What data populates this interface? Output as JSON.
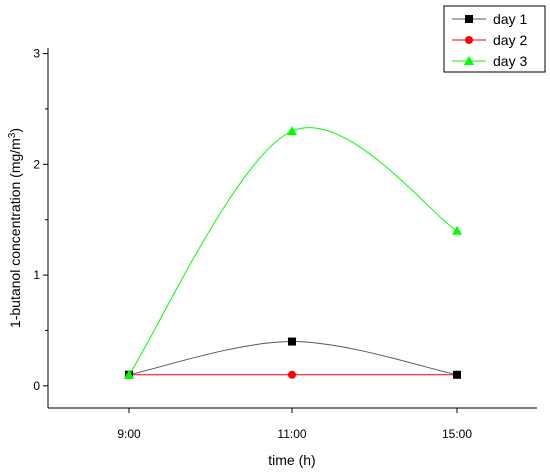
{
  "chart_data": {
    "type": "line",
    "categories": [
      "9:00",
      "11:00",
      "15:00"
    ],
    "xlabel": "time (h)",
    "ylabel": "1-butanol concentration (mg/m",
    "ylabel_sup": "3",
    "ylabel_close": ")",
    "ylim": [
      -0.2,
      3.05
    ],
    "yticks": [
      "0",
      "1",
      "2",
      "3"
    ],
    "grid": false,
    "legend_position": "top-right",
    "series": [
      {
        "name": "day 1",
        "values": [
          0.1,
          0.4,
          0.1
        ],
        "color": "#000000",
        "line_color": "#555555",
        "marker": "square"
      },
      {
        "name": "day 2",
        "values": [
          0.1,
          0.1,
          0.1
        ],
        "color": "#ff0000",
        "line_color": "#ff0000",
        "marker": "circle"
      },
      {
        "name": "day 3",
        "values": [
          0.1,
          2.3,
          1.4
        ],
        "color": "#00ff00",
        "line_color": "#00ff00",
        "marker": "triangle"
      }
    ]
  }
}
